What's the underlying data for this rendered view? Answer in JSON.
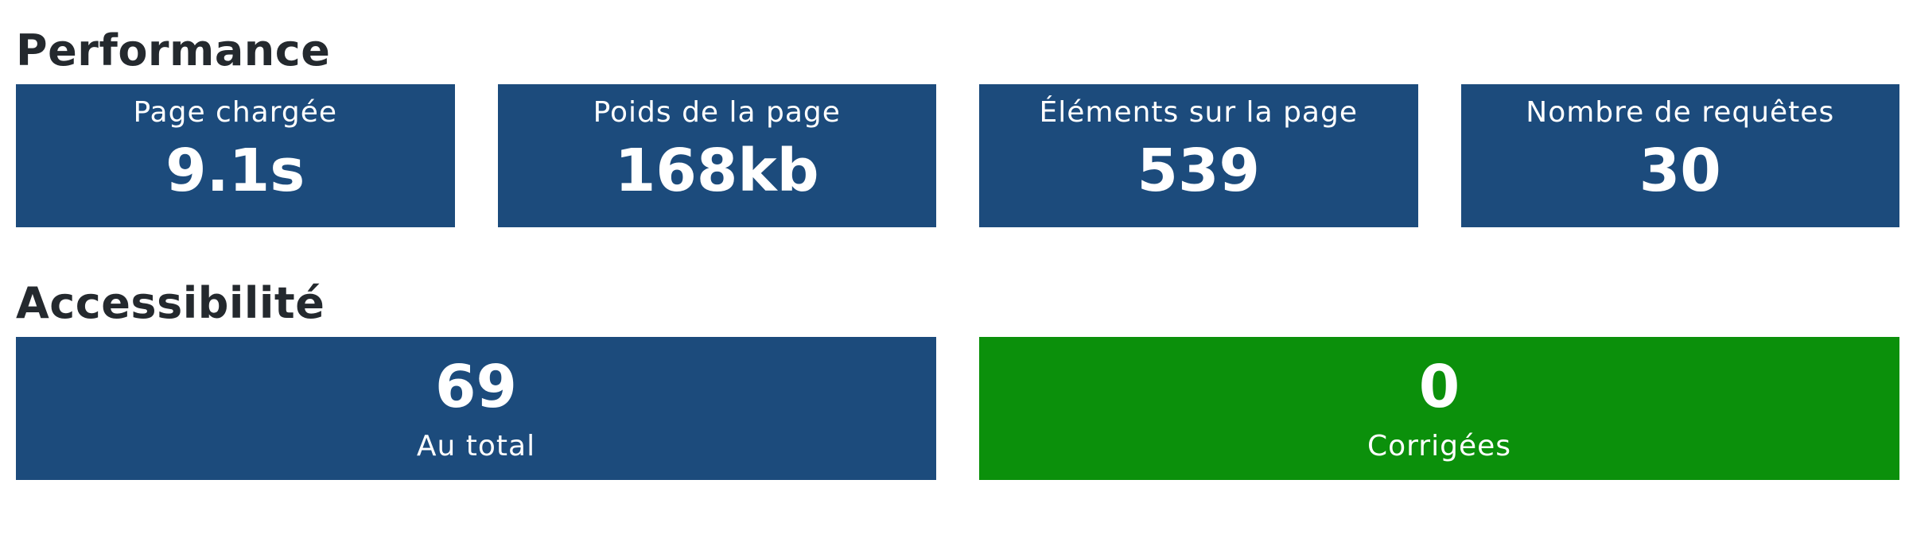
{
  "performance": {
    "title": "Performance",
    "cards": [
      {
        "label": "Page chargée",
        "value": "9.1s"
      },
      {
        "label": "Poids de la page",
        "value": "168kb"
      },
      {
        "label": "Éléments sur la page",
        "value": "539"
      },
      {
        "label": "Nombre de requêtes",
        "value": "30"
      }
    ]
  },
  "accessibility": {
    "title": "Accessibilité",
    "cards": [
      {
        "value": "69",
        "label": "Au total"
      },
      {
        "value": "0",
        "label": "Corrigées"
      }
    ]
  },
  "colors": {
    "card_blue": "#1c4b7c",
    "card_green": "#0b900b",
    "text_dark": "#24292e"
  }
}
